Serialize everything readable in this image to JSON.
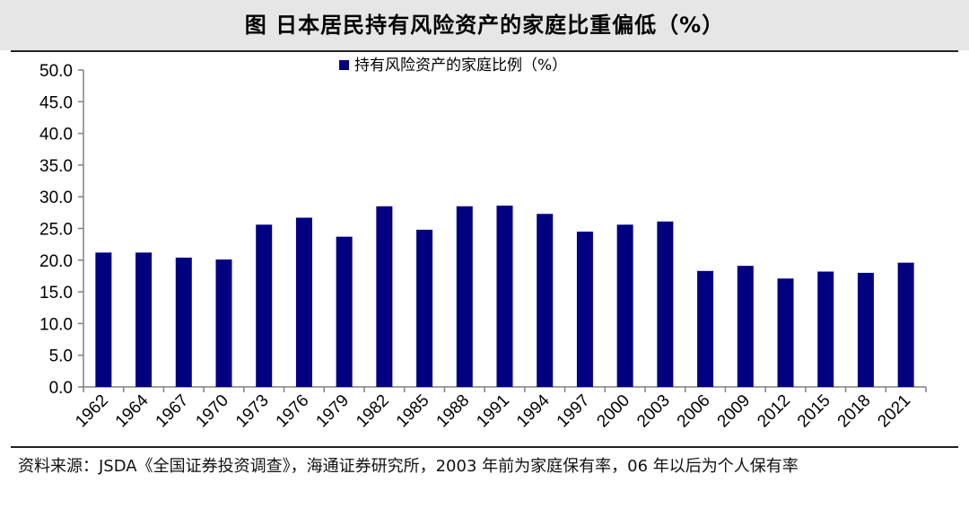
{
  "header": {
    "title": "图  日本居民持有风险资产的家庭比重偏低（%）"
  },
  "footer": {
    "source": "资料来源：JSDA《全国证券投资调查》，海通证券研究所，2003 年前为家庭保有率，06 年以后为个人保有率"
  },
  "colors": {
    "bar": "#000080",
    "axis": "#808080"
  },
  "chart_data": {
    "type": "bar",
    "title": "",
    "xlabel": "",
    "ylabel": "",
    "categories": [
      "1962",
      "1964",
      "1967",
      "1970",
      "1973",
      "1976",
      "1979",
      "1982",
      "1985",
      "1988",
      "1991",
      "1994",
      "1997",
      "2000",
      "2003",
      "2006",
      "2009",
      "2012",
      "2015",
      "2018",
      "2021"
    ],
    "series": [
      {
        "name": "持有风险资产的家庭比例（%）",
        "values": [
          21.2,
          21.2,
          20.4,
          20.1,
          25.6,
          26.7,
          23.7,
          28.5,
          24.8,
          28.5,
          28.6,
          27.3,
          24.5,
          25.6,
          26.1,
          18.3,
          19.1,
          17.1,
          18.2,
          18.0,
          19.6
        ]
      }
    ],
    "ylim": [
      0,
      50
    ],
    "yticks": [
      "0.0",
      "5.0",
      "10.0",
      "15.0",
      "20.0",
      "25.0",
      "30.0",
      "35.0",
      "40.0",
      "45.0",
      "50.0"
    ],
    "grid": false,
    "legend_position": "top-center"
  }
}
